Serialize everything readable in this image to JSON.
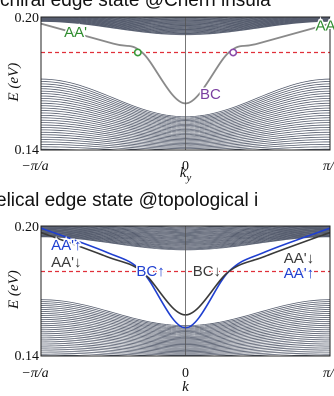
{
  "banners": {
    "top": "chiral edge state @Chern insula",
    "bottom": "elical edge state @topological i"
  },
  "colors": {
    "bulk": "#565d6e",
    "edge_top": "#8a8a8a",
    "fermi": "#e0303a",
    "green_marker": "#3a9a3a",
    "purple_marker": "#8a4aa8",
    "label_green": "#2e8b2e",
    "label_purple": "#7a3ea0",
    "blue": "#1f3fd0",
    "dark": "#3a3a3a"
  },
  "chart_data": [
    {
      "type": "line",
      "name": "chiral",
      "ylabel": "E (eV)",
      "xlabel": "k_y",
      "xlabel_main": "k",
      "xlabel_sub": "y",
      "xticks": [
        "−π/a",
        "0",
        "π/a"
      ],
      "yticks": [
        "0.20",
        "0.14"
      ],
      "xlim": [
        -1,
        1
      ],
      "ylim": [
        0.14,
        0.2
      ],
      "fermi_level": 0.184,
      "bulk": {
        "upper_band": {
          "bottom_at_edges": 0.198,
          "bottom_at_center": 0.192,
          "top": 0.2
        },
        "lower_band": {
          "top_at_edges": 0.172,
          "top_at_center": 0.155,
          "bottom": 0.14
        }
      },
      "edge_states": [
        {
          "name": "BC",
          "points": [
            [
              -1,
              0.197
            ],
            [
              -0.5,
              0.188
            ],
            [
              -0.3,
              0.184
            ],
            [
              0,
              0.161
            ],
            [
              0.3,
              0.184
            ],
            [
              0.5,
              0.188
            ],
            [
              1,
              0.197
            ]
          ]
        }
      ],
      "crossings": [
        {
          "k": -0.33,
          "E": 0.184,
          "color": "green"
        },
        {
          "k": 0.33,
          "E": 0.184,
          "color": "purple"
        }
      ],
      "labels": [
        {
          "text": "AA'",
          "k": -0.84,
          "E": 0.191,
          "color": "green"
        },
        {
          "text": "AA'",
          "k": 0.9,
          "E": 0.194,
          "color": "green"
        },
        {
          "text": "BC",
          "k": 0.1,
          "E": 0.163,
          "color": "purple"
        }
      ]
    },
    {
      "type": "line",
      "name": "helical",
      "ylabel": "E (eV)",
      "xlabel": "k",
      "xticks": [
        "−π/a",
        "0",
        "π/a"
      ],
      "yticks": [
        "0.20",
        "0.14"
      ],
      "xlim": [
        -1,
        1
      ],
      "ylim": [
        0.14,
        0.2
      ],
      "fermi_level": 0.179,
      "bulk": {
        "upper_band": {
          "bottom_at_edges": 0.195,
          "bottom_at_center": 0.189,
          "top": 0.2
        },
        "lower_band": {
          "top_at_edges": 0.166,
          "top_at_center": 0.154,
          "bottom": 0.14
        }
      },
      "edge_states": [
        {
          "name": "blue",
          "points": [
            [
              -1,
              0.199
            ],
            [
              -0.55,
              0.188
            ],
            [
              -0.3,
              0.179
            ],
            [
              0,
              0.153
            ],
            [
              0.3,
              0.179
            ],
            [
              0.55,
              0.188
            ],
            [
              1,
              0.199
            ]
          ]
        },
        {
          "name": "dark",
          "points": [
            [
              -1,
              0.197
            ],
            [
              -0.55,
              0.186
            ],
            [
              -0.3,
              0.179
            ],
            [
              0,
              0.159
            ],
            [
              0.3,
              0.179
            ],
            [
              0.55,
              0.186
            ],
            [
              1,
              0.197
            ]
          ]
        }
      ],
      "labels": [
        {
          "text": "AA'↑",
          "k": -0.93,
          "E": 0.189,
          "color": "blue"
        },
        {
          "text": "AA'↓",
          "k": -0.93,
          "E": 0.181,
          "color": "dark"
        },
        {
          "text": "BC↑",
          "k": -0.34,
          "E": 0.177,
          "color": "blue"
        },
        {
          "text": "BC↓",
          "k": 0.05,
          "E": 0.177,
          "color": "dark"
        },
        {
          "text": "AA'↓",
          "k": 0.68,
          "E": 0.183,
          "color": "dark"
        },
        {
          "text": "AA'↑",
          "k": 0.68,
          "E": 0.176,
          "color": "blue"
        }
      ]
    }
  ]
}
